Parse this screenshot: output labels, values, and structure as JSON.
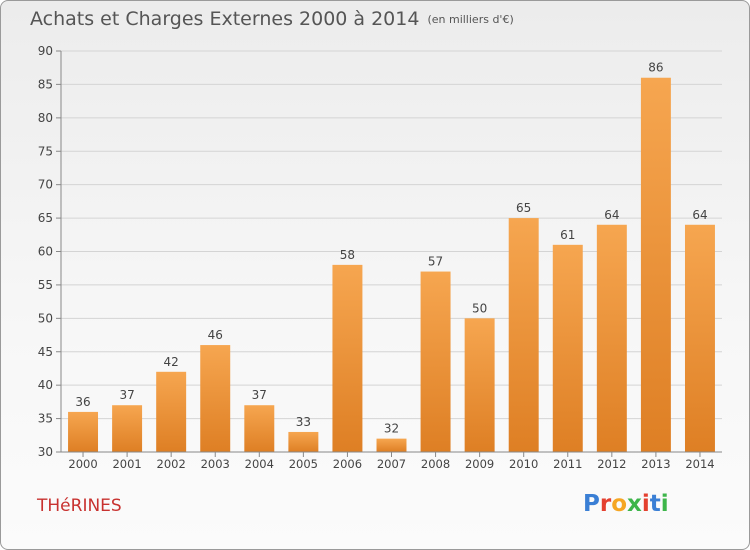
{
  "title": "Achats et Charges Externes 2000 à 2014",
  "subtitle": "(en milliers d'€)",
  "place_name": "THéRINES",
  "logo": {
    "text": "Proxiti",
    "letter_colors": [
      "#3a7fd5",
      "#e4402f",
      "#f5a623",
      "#3db54a",
      "#e4402f",
      "#3a7fd5",
      "#3db54a"
    ]
  },
  "colors": {
    "bar_light": "#f6a650",
    "bar_dark": "#de7f24",
    "grid": "#d4d4d4",
    "axis_text": "#444444"
  },
  "chart_data": {
    "type": "bar",
    "categories": [
      "2000",
      "2001",
      "2002",
      "2003",
      "2004",
      "2005",
      "2006",
      "2007",
      "2008",
      "2009",
      "2010",
      "2011",
      "2012",
      "2013",
      "2014"
    ],
    "values": [
      36,
      37,
      42,
      46,
      37,
      33,
      58,
      32,
      57,
      50,
      65,
      61,
      64,
      86,
      64
    ],
    "ylim": [
      30,
      90
    ],
    "yticks": [
      30,
      35,
      40,
      45,
      50,
      55,
      60,
      65,
      70,
      75,
      80,
      85,
      90
    ],
    "grid": true,
    "data_labels": true
  }
}
